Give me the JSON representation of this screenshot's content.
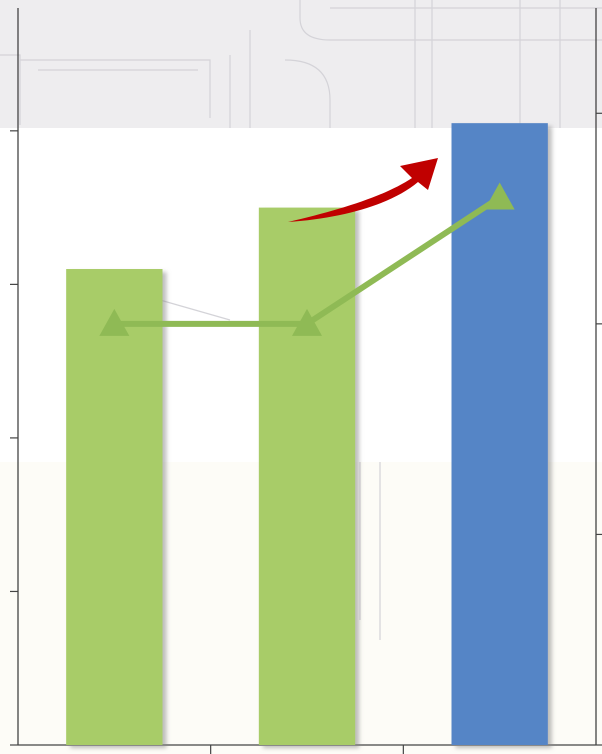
{
  "chart_data": {
    "type": "bar",
    "categories": [
      "",
      "",
      ""
    ],
    "values": [
      3.1,
      3.5,
      4.05
    ],
    "ylim": [
      0,
      4.8
    ],
    "bar_colors": [
      "#a8cc68",
      "#a8cc68",
      "#5585c6"
    ],
    "overlay_line": {
      "type": "line",
      "values": [
        2.0,
        2.0,
        2.6
      ],
      "ylim": [
        0,
        3.5
      ],
      "color": "#8fba55",
      "marker": "triangle"
    },
    "annotation": {
      "type": "arrow",
      "color": "#c00000",
      "direction": "up-right"
    },
    "grid": false,
    "legend": "none"
  },
  "colors": {
    "top_band": "#eeedef",
    "bottom_band": "#fdfcf7",
    "axis": "#444444",
    "bar_shadow": "#9a9a9a"
  }
}
